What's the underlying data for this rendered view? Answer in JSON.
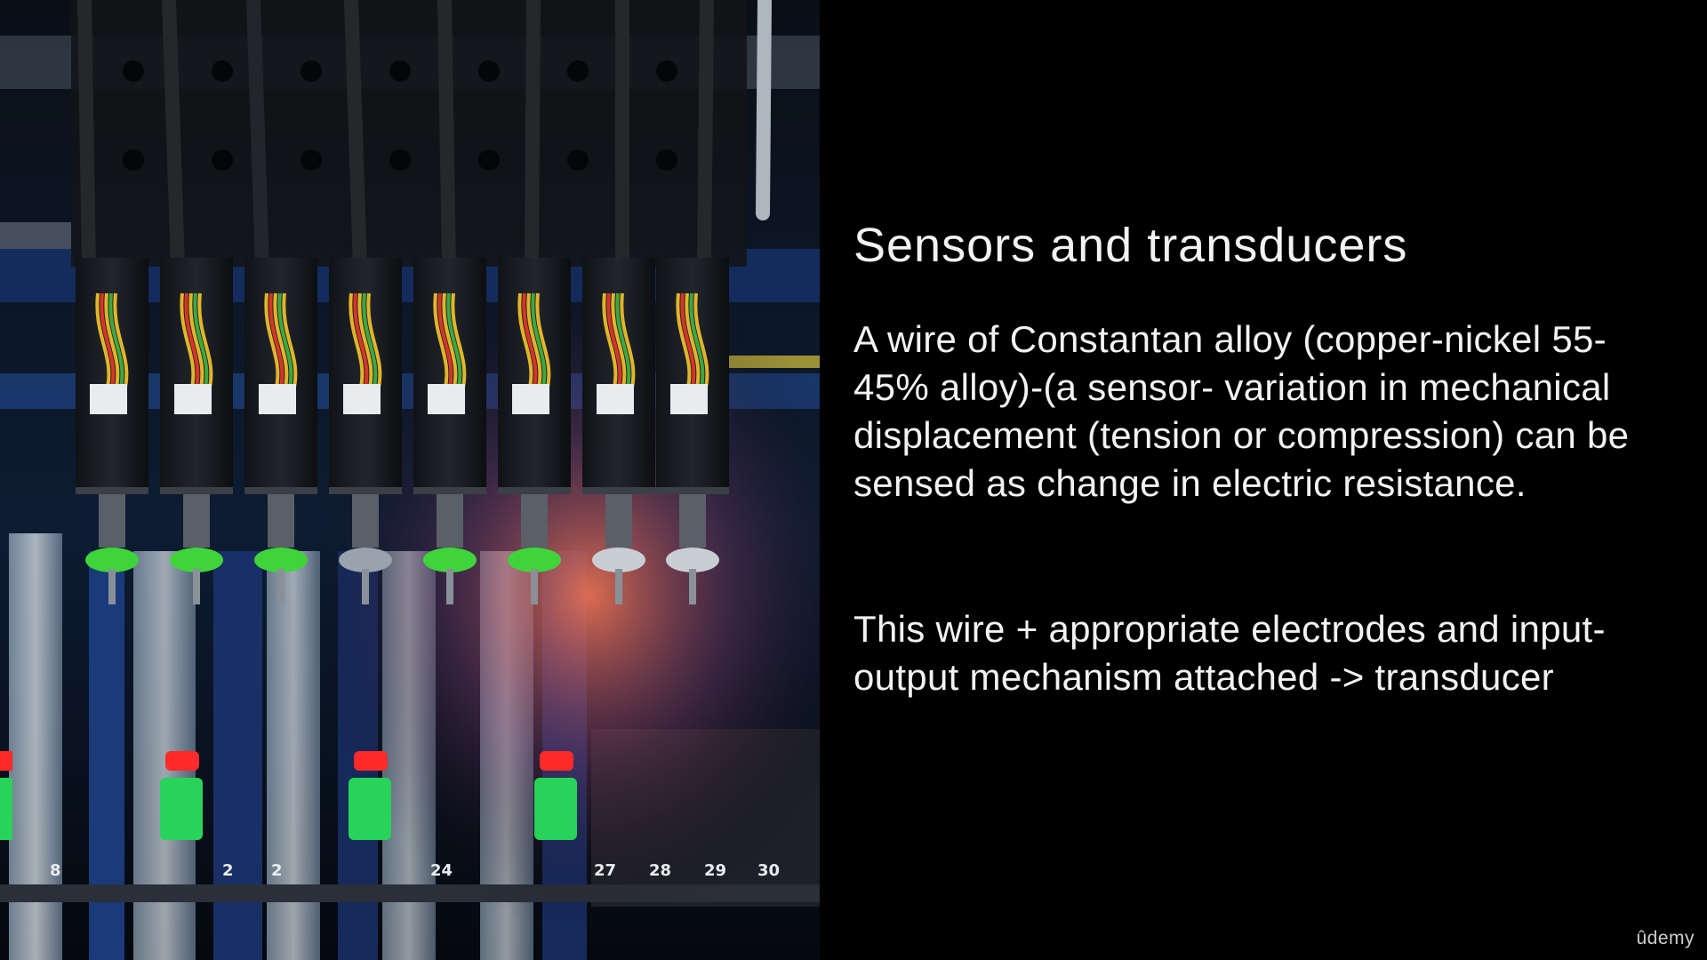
{
  "slide": {
    "title": "Sensors and transducers",
    "paragraphs": [
      "A wire of Constantan alloy (copper-nickel 55-45% alloy)-(a sensor- variation in mechanical displacement (tension or compression) can be sensed as change in electric resistance.",
      "This wire + appropriate electrodes and input-output mechanism attached -> transducer"
    ]
  },
  "photo": {
    "slot_numbers": [
      "8",
      "2",
      "2",
      "24",
      "27",
      "28",
      "29",
      "30"
    ]
  },
  "branding": {
    "logo": "ûdemy"
  },
  "colors": {
    "background": "#000000",
    "text": "#f2f2f2",
    "nozzle_green": "#3fd43a",
    "indicator_red": "#ff2a2a",
    "indicator_green": "#28d35a"
  }
}
